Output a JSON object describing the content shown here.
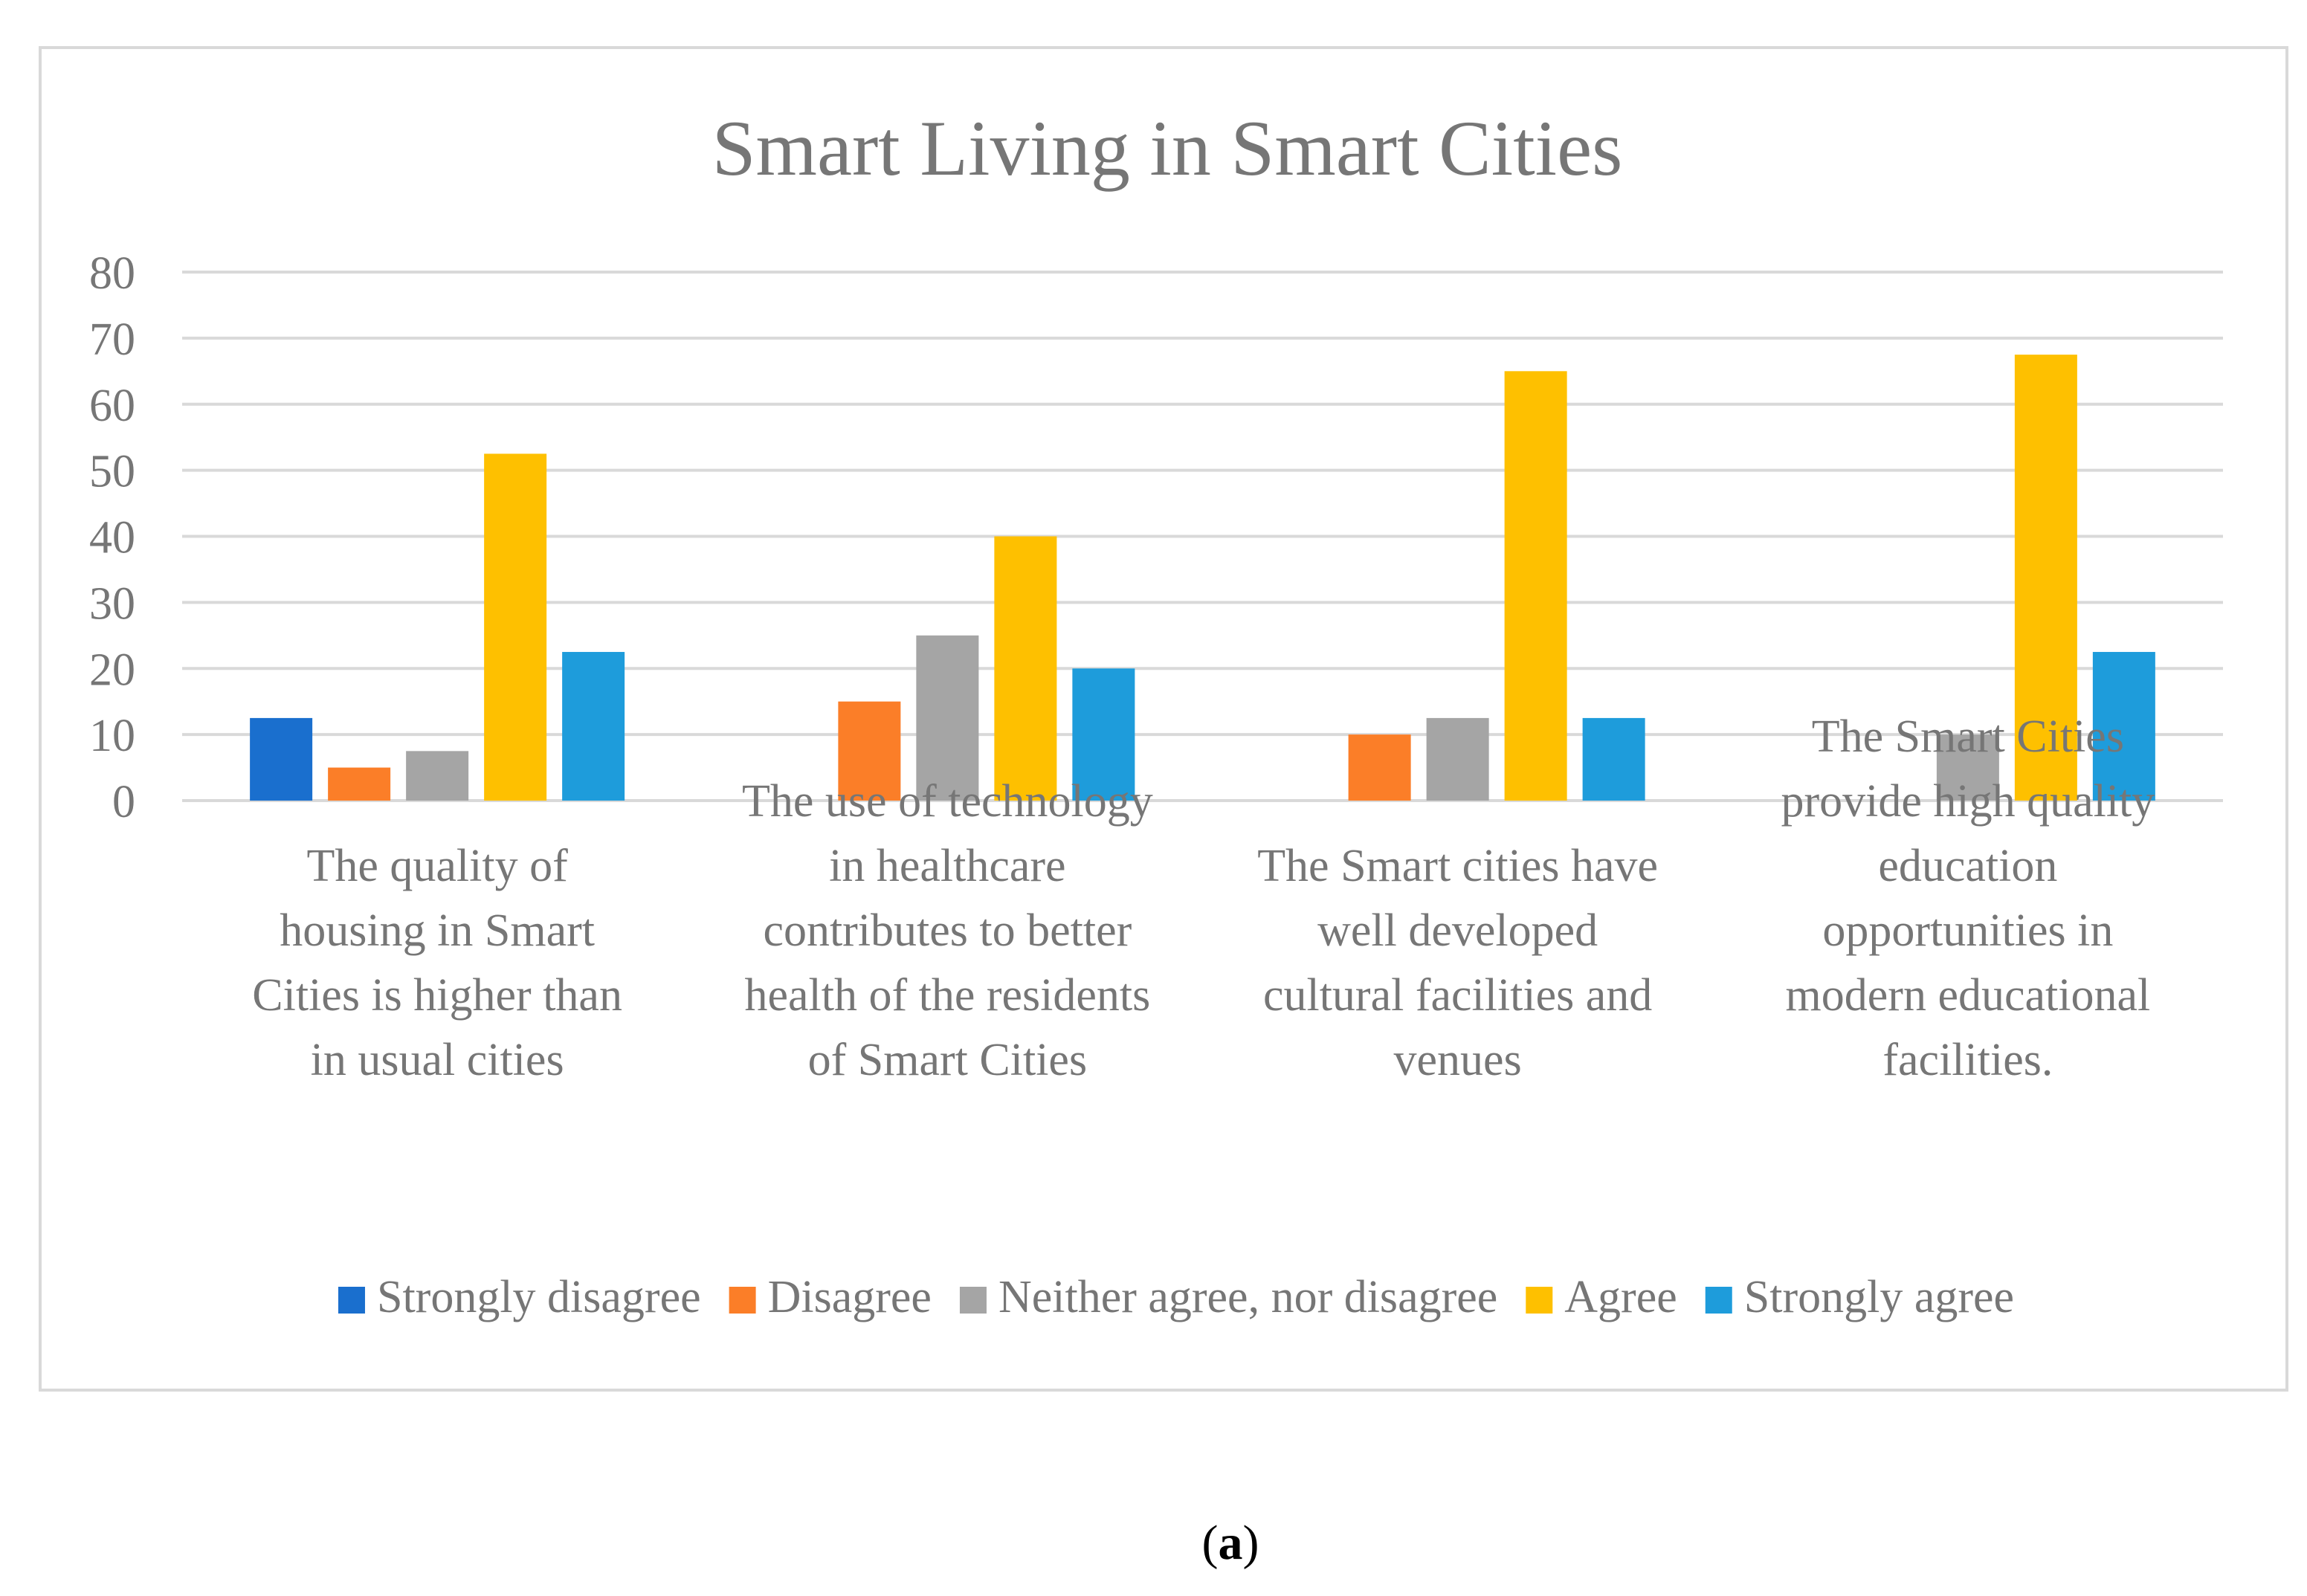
{
  "chart_data": {
    "type": "bar",
    "title": "Smart Living in Smart Cities",
    "xlabel": "",
    "ylabel": "",
    "ylim": [
      0,
      80
    ],
    "yticks": [
      0,
      10,
      20,
      30,
      40,
      50,
      60,
      70,
      80
    ],
    "grid": true,
    "legend_position": "bottom",
    "categories": [
      [
        "The quality of",
        "housing in Smart",
        "Cities is higher than",
        "in usual cities"
      ],
      [
        "The use of technology",
        "in healthcare",
        "contributes to better",
        "health of the residents",
        "of Smart Cities"
      ],
      [
        "The Smart cities have",
        "well developed",
        "cultural facilities and",
        "venues"
      ],
      [
        "The Smart Cities",
        "provide high quality",
        "education",
        "opportunities in",
        "modern educational",
        "facilities."
      ]
    ],
    "series": [
      {
        "name": "Strongly disagree",
        "color": "#1a6fce",
        "values": [
          12.5,
          0,
          0,
          0
        ]
      },
      {
        "name": "Disagree",
        "color": "#fb7e28",
        "values": [
          5,
          15,
          10,
          0
        ]
      },
      {
        "name": "Neither agree, nor disagree",
        "color": "#a5a5a5",
        "values": [
          7.5,
          25,
          12.5,
          10
        ]
      },
      {
        "name": "Agree",
        "color": "#fec000",
        "values": [
          52.5,
          40,
          65,
          67.5
        ]
      },
      {
        "name": "Strongly agree",
        "color": "#1e9cdb",
        "values": [
          22.5,
          20,
          12.5,
          22.5
        ]
      }
    ]
  },
  "caption": {
    "open": "(",
    "letter": "a",
    "close": ")"
  }
}
